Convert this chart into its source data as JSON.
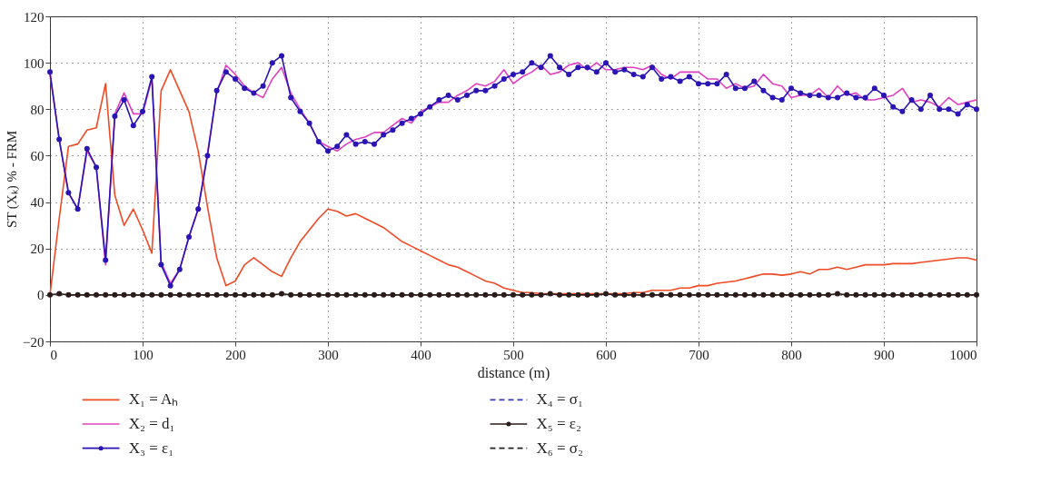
{
  "chart_data": {
    "type": "line",
    "xlabel": "distance (m)",
    "ylabel": "ST (Xₖ) % - FRM",
    "x": [
      0,
      10,
      20,
      30,
      40,
      50,
      60,
      70,
      80,
      90,
      100,
      110,
      120,
      130,
      140,
      150,
      160,
      170,
      180,
      190,
      200,
      210,
      220,
      230,
      240,
      250,
      260,
      270,
      280,
      290,
      300,
      310,
      320,
      330,
      340,
      350,
      360,
      370,
      380,
      390,
      400,
      410,
      420,
      430,
      440,
      450,
      460,
      470,
      480,
      490,
      500,
      510,
      520,
      530,
      540,
      550,
      560,
      570,
      580,
      590,
      600,
      610,
      620,
      630,
      640,
      650,
      660,
      670,
      680,
      690,
      700,
      710,
      720,
      730,
      740,
      750,
      760,
      770,
      780,
      790,
      800,
      810,
      820,
      830,
      840,
      850,
      860,
      870,
      880,
      890,
      900,
      910,
      920,
      930,
      940,
      950,
      960,
      970,
      980,
      990,
      1000
    ],
    "series": [
      {
        "name": "X₁ = Aₕ",
        "color": "#f04a24",
        "line_style": "solid",
        "marker": "none",
        "values": [
          0,
          33,
          64,
          65,
          71,
          72,
          91,
          43,
          30,
          37,
          28,
          18,
          88,
          97,
          88,
          79,
          62,
          38,
          16,
          4,
          6,
          13,
          16,
          13,
          10,
          8,
          16,
          23,
          28,
          33,
          37,
          36,
          34,
          35,
          33,
          31,
          29,
          26,
          23,
          21,
          19,
          17,
          15,
          13,
          12,
          10,
          8,
          6,
          5,
          3,
          2,
          1,
          1,
          0.5,
          0.5,
          0.5,
          0.5,
          0.5,
          0.5,
          0.5,
          0.5,
          0.5,
          0.5,
          1,
          1,
          2,
          2,
          2,
          3,
          3,
          4,
          4,
          5,
          5.5,
          6,
          7,
          8,
          9,
          9,
          8.5,
          9,
          10,
          9,
          11,
          11,
          12,
          11,
          12,
          13,
          13,
          13,
          13.5,
          13.5,
          13.5,
          14,
          14.5,
          15,
          15.5,
          16,
          16,
          15
        ]
      },
      {
        "name": "X₂ = d₁",
        "color": "#e040c0",
        "line_style": "solid",
        "marker": "none",
        "values": [
          95,
          67,
          44,
          37,
          62,
          55,
          13,
          78,
          87,
          78,
          78,
          93,
          14,
          5,
          11,
          25,
          37,
          61,
          87,
          99,
          95,
          90,
          87,
          85,
          93,
          98,
          87,
          80,
          74,
          66,
          64,
          62,
          65,
          67,
          68,
          70,
          70,
          73,
          76,
          74,
          79,
          81,
          83,
          83,
          86,
          88,
          91,
          90,
          92,
          97,
          91,
          94,
          96,
          99,
          95,
          96,
          99,
          100,
          97,
          100,
          97,
          97,
          98,
          98,
          97,
          99,
          95,
          93,
          96,
          96,
          96,
          93,
          93,
          89,
          91,
          89,
          90,
          95,
          91,
          90,
          85,
          86,
          86,
          89,
          85,
          90,
          86,
          87,
          84,
          84,
          85,
          86,
          89,
          83,
          84,
          83,
          81,
          85,
          82,
          83,
          84
        ]
      },
      {
        "name": "X₃ = ε₁",
        "color": "#2a14b4",
        "line_style": "solid",
        "marker": "circle",
        "values": [
          96,
          67,
          44,
          37,
          63,
          55,
          15,
          77,
          84,
          73,
          79,
          94,
          13,
          4,
          11,
          25,
          37,
          60,
          88,
          96,
          93,
          89,
          87,
          90,
          100,
          103,
          85,
          79,
          74,
          66,
          62,
          64,
          69,
          65,
          66,
          65,
          69,
          71,
          74,
          76,
          78,
          81,
          84,
          86,
          84,
          86,
          88,
          88,
          90,
          93,
          95,
          96,
          100,
          98,
          103,
          98,
          95,
          98,
          98,
          96,
          100,
          96,
          97,
          95,
          94,
          98,
          93,
          94,
          92,
          94,
          91,
          91,
          91,
          95,
          89,
          89,
          92,
          88,
          85,
          84,
          89,
          87,
          86,
          86,
          85,
          85,
          87,
          85,
          85,
          89,
          86,
          81,
          79,
          84,
          80,
          86,
          80,
          80,
          78,
          82,
          80
        ]
      },
      {
        "name": "X₄ = σ₁",
        "color": "#3a3ab0",
        "line_style": "dashed",
        "marker": "none",
        "values": [
          null,
          null,
          null,
          null,
          null,
          null,
          null,
          null,
          null,
          null,
          null,
          null,
          null,
          null,
          null,
          null,
          null,
          null,
          null,
          null,
          null,
          null,
          null,
          null,
          null,
          null,
          null,
          null,
          null,
          null,
          null,
          null,
          null,
          null,
          null,
          null,
          null,
          null,
          null,
          null,
          null,
          null,
          null,
          null,
          null,
          null,
          null,
          null,
          null,
          null,
          null,
          null,
          null,
          null,
          null,
          null,
          null,
          null,
          null,
          null,
          null,
          null,
          null,
          null,
          null,
          null,
          null,
          null,
          null,
          null,
          null,
          null,
          null,
          null,
          null,
          null,
          null,
          null,
          null,
          null,
          null,
          null,
          null,
          null,
          null,
          null,
          null,
          null,
          null,
          null,
          null,
          null,
          null,
          null,
          null,
          null,
          null,
          null,
          null,
          null,
          null
        ]
      },
      {
        "name": "X₅ = ε₂",
        "color": "#2a1a1a",
        "line_style": "solid",
        "marker": "circle",
        "values": [
          0,
          0.5,
          0,
          0,
          0,
          0,
          0,
          0,
          0,
          0,
          0,
          0,
          0,
          0,
          0,
          0,
          0,
          0,
          0,
          0,
          0,
          0,
          0,
          0,
          0,
          0.5,
          0,
          0,
          0,
          0,
          0,
          0,
          0,
          0,
          0,
          0,
          0,
          0,
          0,
          0,
          0,
          0,
          0,
          0,
          0,
          0,
          0,
          0,
          0,
          0,
          0,
          0,
          0,
          0,
          0.5,
          0,
          0,
          0,
          0,
          0,
          0.5,
          0,
          0,
          0,
          0,
          0,
          0,
          0,
          0,
          0,
          0,
          0,
          0,
          0,
          0,
          0,
          0,
          0,
          0,
          0,
          0,
          0,
          0,
          0,
          0,
          0.5,
          0,
          0,
          0,
          0,
          0,
          0,
          0,
          0,
          0,
          0,
          0,
          0,
          0,
          0,
          0
        ]
      },
      {
        "name": "X₆ = σ₂",
        "color": "#222222",
        "line_style": "dashed",
        "marker": "none",
        "values": [
          null,
          null,
          null,
          null,
          null,
          null,
          null,
          null,
          null,
          null,
          null,
          null,
          null,
          null,
          null,
          null,
          null,
          null,
          null,
          null,
          null,
          null,
          null,
          null,
          null,
          null,
          null,
          null,
          null,
          null,
          null,
          null,
          null,
          null,
          null,
          null,
          null,
          null,
          null,
          null,
          null,
          null,
          null,
          null,
          null,
          null,
          null,
          null,
          null,
          null,
          null,
          null,
          null,
          null,
          null,
          null,
          null,
          null,
          null,
          null,
          null,
          null,
          null,
          null,
          null,
          null,
          null,
          null,
          null,
          null,
          null,
          null,
          null,
          null,
          null,
          null,
          null,
          null,
          null,
          null,
          null,
          null,
          null,
          null,
          null,
          null,
          null,
          null,
          null,
          null,
          null,
          null,
          null,
          null,
          null,
          null,
          null,
          null,
          null,
          null,
          null
        ]
      }
    ],
    "xlim": [
      0,
      1000
    ],
    "xticks": [
      0,
      100,
      200,
      300,
      400,
      500,
      600,
      700,
      800,
      900,
      1000
    ],
    "ylim": [
      -20,
      120
    ],
    "yticks": [
      -20,
      0,
      20,
      40,
      60,
      80,
      100,
      120
    ],
    "grid": true,
    "legend": "bottom"
  }
}
